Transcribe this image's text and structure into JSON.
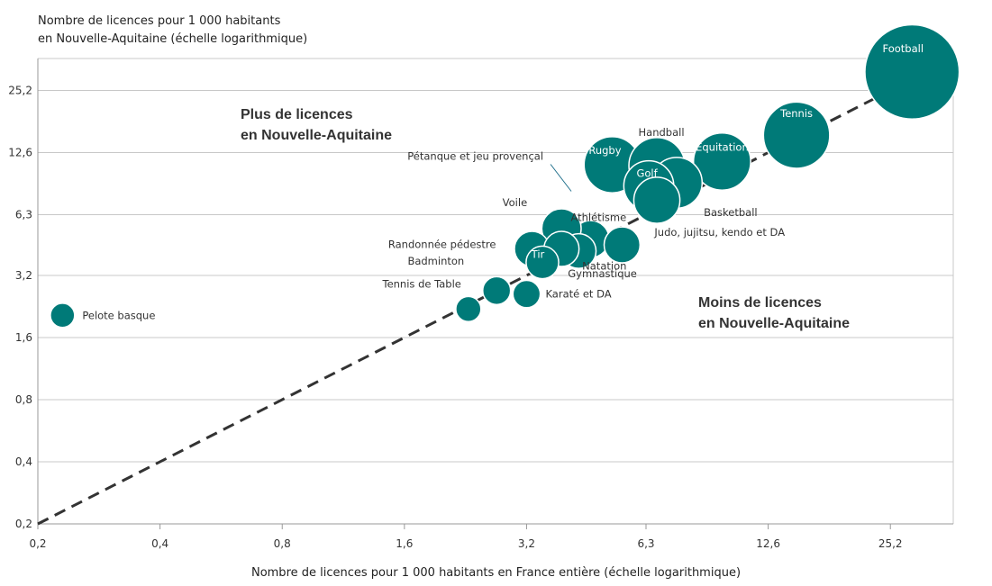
{
  "chart_data": {
    "type": "scatter",
    "ylabel_line1": "Nombre de licences pour 1 000 habitants",
    "ylabel_line2": "en Nouvelle-Aquitaine (échelle logarithmique)",
    "xlabel": "Nombre de licences pour 1 000 habitants en France entière (échelle logarithmique)",
    "x_scale": "log",
    "y_scale": "log",
    "xlim": [
      0.2,
      36
    ],
    "ylim": [
      0.2,
      36
    ],
    "x_ticks": [
      0.2,
      0.4,
      0.8,
      1.6,
      3.2,
      6.3,
      12.6,
      25.2
    ],
    "y_ticks": [
      0.2,
      0.4,
      0.8,
      1.6,
      3.2,
      6.3,
      12.6,
      25.2
    ],
    "tick_labels": [
      "0,2",
      "0,4",
      "0,8",
      "1,6",
      "3,2",
      "6,3",
      "12,6",
      "25,2"
    ],
    "zone_above_line1": "Plus de licences",
    "zone_above_line2": "en Nouvelle-Aquitaine",
    "zone_below_line1": "Moins de licences",
    "zone_below_line2": "en Nouvelle-Aquitaine",
    "reference_line": "y = x",
    "bubble_color": "#007a78",
    "grid": true,
    "points": [
      {
        "name": "Football",
        "x": 28.5,
        "y": 31.0,
        "size": 31.0
      },
      {
        "name": "Tennis",
        "x": 14.8,
        "y": 15.3,
        "size": 15.3
      },
      {
        "name": "Équitation",
        "x": 9.7,
        "y": 11.4,
        "size": 11.4
      },
      {
        "name": "Rugby",
        "x": 5.2,
        "y": 11.0,
        "size": 11.0
      },
      {
        "name": "Handball",
        "x": 6.7,
        "y": 10.9,
        "size": 10.9
      },
      {
        "name": "Basketball",
        "x": 7.5,
        "y": 9.0,
        "size": 9.0
      },
      {
        "name": "Golf",
        "x": 6.4,
        "y": 8.7,
        "size": 8.7
      },
      {
        "name": "Pétanque et jeu provençal",
        "x": 6.7,
        "y": 7.4,
        "size": 7.4
      },
      {
        "name": "Athlétisme",
        "x": 4.6,
        "y": 4.8,
        "size": 4.8
      },
      {
        "name": "Voile",
        "x": 3.9,
        "y": 5.4,
        "size": 5.4
      },
      {
        "name": "Randonnée pédestre",
        "x": 3.3,
        "y": 4.3,
        "size": 4.3
      },
      {
        "name": "Judo, jujitsu, kendo et DA",
        "x": 5.5,
        "y": 4.5,
        "size": 4.5
      },
      {
        "name": "Gymnastique",
        "x": 4.3,
        "y": 4.2,
        "size": 4.2
      },
      {
        "name": "Natation",
        "x": 3.9,
        "y": 4.3,
        "size": 4.3
      },
      {
        "name": "Tir",
        "x": 3.5,
        "y": 3.7,
        "size": 3.7
      },
      {
        "name": "Badminton",
        "x": 2.7,
        "y": 2.7,
        "size": 2.7
      },
      {
        "name": "Tennis de Table",
        "x": 2.3,
        "y": 2.2,
        "size": 2.2
      },
      {
        "name": "Karaté et DA",
        "x": 3.2,
        "y": 2.6,
        "size": 2.6
      },
      {
        "name": "Pelote basque",
        "x": 0.23,
        "y": 2.05,
        "size": 2.05
      }
    ]
  }
}
